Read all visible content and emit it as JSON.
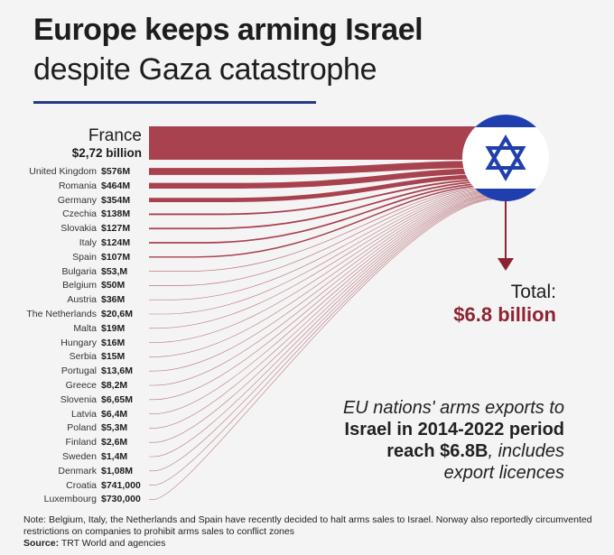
{
  "title_line1": "Europe keeps arming Israel",
  "title_line2": "despite Gaza catastrophe",
  "colors": {
    "flow": "#a8424f",
    "accent": "#8d2431",
    "flag_blue": "#1f3fae",
    "underline": "#243a86"
  },
  "flag_icon": "israel-flag-icon",
  "chart_data": {
    "type": "sankey",
    "target": "Israel",
    "sources": [
      {
        "country": "France",
        "label": "$2,72 billion",
        "value_musd": 2720
      },
      {
        "country": "United Kingdom",
        "label": "$576M",
        "value_musd": 576
      },
      {
        "country": "Romania",
        "label": "$464M",
        "value_musd": 464
      },
      {
        "country": "Germany",
        "label": "$354M",
        "value_musd": 354
      },
      {
        "country": "Czechia",
        "label": "$138M",
        "value_musd": 138
      },
      {
        "country": "Slovakia",
        "label": "$127M",
        "value_musd": 127
      },
      {
        "country": "Italy",
        "label": "$124M",
        "value_musd": 124
      },
      {
        "country": "Spain",
        "label": "$107M",
        "value_musd": 107
      },
      {
        "country": "Bulgaria",
        "label": "$53,M",
        "value_musd": 53
      },
      {
        "country": "Belgium",
        "label": "$50M",
        "value_musd": 50
      },
      {
        "country": "Austria",
        "label": "$36M",
        "value_musd": 36
      },
      {
        "country": "The Netherlands",
        "label": "$20,6M",
        "value_musd": 20.6
      },
      {
        "country": "Malta",
        "label": "$19M",
        "value_musd": 19
      },
      {
        "country": "Hungary",
        "label": "$16M",
        "value_musd": 16
      },
      {
        "country": "Serbia",
        "label": "$15M",
        "value_musd": 15
      },
      {
        "country": "Portugal",
        "label": "$13,6M",
        "value_musd": 13.6
      },
      {
        "country": "Greece",
        "label": "$8,2M",
        "value_musd": 8.2
      },
      {
        "country": "Slovenia",
        "label": "$6,65M",
        "value_musd": 6.65
      },
      {
        "country": "Latvia",
        "label": "$6,4M",
        "value_musd": 6.4
      },
      {
        "country": "Poland",
        "label": "$5,3M",
        "value_musd": 5.3
      },
      {
        "country": "Finland",
        "label": "$2,6M",
        "value_musd": 2.6
      },
      {
        "country": "Sweden",
        "label": "$1,4M",
        "value_musd": 1.4
      },
      {
        "country": "Denmark",
        "label": "$1,08M",
        "value_musd": 1.08
      },
      {
        "country": "Croatia",
        "label": "$741,000",
        "value_musd": 0.741
      },
      {
        "country": "Luxembourg",
        "label": "$730,000",
        "value_musd": 0.73
      }
    ]
  },
  "total": {
    "label": "Total:",
    "value": "$6.8 billion"
  },
  "description": {
    "line1": "EU nations' arms exports to",
    "line2_bold": "Israel in 2014-2022 period",
    "line3_bold": "reach $6.8B",
    "line3_rest": ", includes",
    "line4": "export licences"
  },
  "note": "Note: Belgium, Italy, the Netherlands and Spain have recently decided to halt arms sales to Israel. Norway also reportedly circumvented restrictions on companies to prohibit arms sales to conflict zones",
  "source_label": "Source:",
  "source_text": " TRT World and agencies"
}
